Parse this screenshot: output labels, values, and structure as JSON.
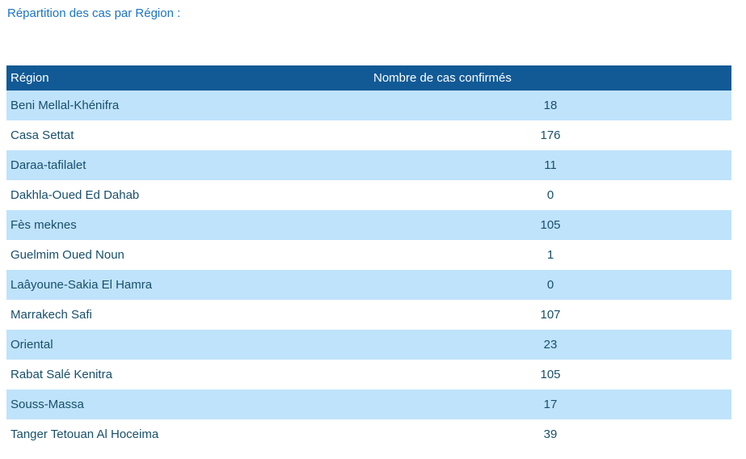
{
  "page": {
    "title": "Répartition des cas par Région :"
  },
  "table": {
    "columns": [
      {
        "label": "Région"
      },
      {
        "label": "Nombre de cas confirmés"
      }
    ],
    "rows": [
      {
        "region": "Beni Mellal-Khénifra",
        "cases": "18"
      },
      {
        "region": "Casa Settat",
        "cases": "176"
      },
      {
        "region": "Daraa-tafilalet",
        "cases": "11"
      },
      {
        "region": "Dakhla-Oued Ed Dahab",
        "cases": "0"
      },
      {
        "region": "Fès meknes",
        "cases": "105"
      },
      {
        "region": "Guelmim Oued Noun",
        "cases": "1"
      },
      {
        "region": "Laâyoune-Sakia El Hamra",
        "cases": "0"
      },
      {
        "region": "Marrakech Safi",
        "cases": "107"
      },
      {
        "region": "Oriental",
        "cases": "23"
      },
      {
        "region": "Rabat Salé Kenitra",
        "cases": "105"
      },
      {
        "region": "Souss-Massa",
        "cases": "17"
      },
      {
        "region": "Tanger Tetouan Al Hoceima",
        "cases": "39"
      }
    ]
  },
  "colors": {
    "title_text": "#1B74C9",
    "header_bg": "#115A96",
    "header_text": "#FFFFFF",
    "row_bg": "#FFFFFF",
    "row_alt_bg": "#BFE3FB",
    "body_text": "#174F6C"
  },
  "chart_data": {
    "type": "table",
    "title": "Répartition des cas par Région :",
    "columns": [
      "Région",
      "Nombre de cas confirmés"
    ],
    "categories": [
      "Beni Mellal-Khénifra",
      "Casa Settat",
      "Daraa-tafilalet",
      "Dakhla-Oued Ed Dahab",
      "Fès meknes",
      "Guelmim Oued Noun",
      "Laâyoune-Sakia El Hamra",
      "Marrakech Safi",
      "Oriental",
      "Rabat Salé Kenitra",
      "Souss-Massa",
      "Tanger Tetouan Al Hoceima"
    ],
    "values": [
      18,
      176,
      11,
      0,
      105,
      1,
      0,
      107,
      23,
      105,
      17,
      39
    ]
  }
}
